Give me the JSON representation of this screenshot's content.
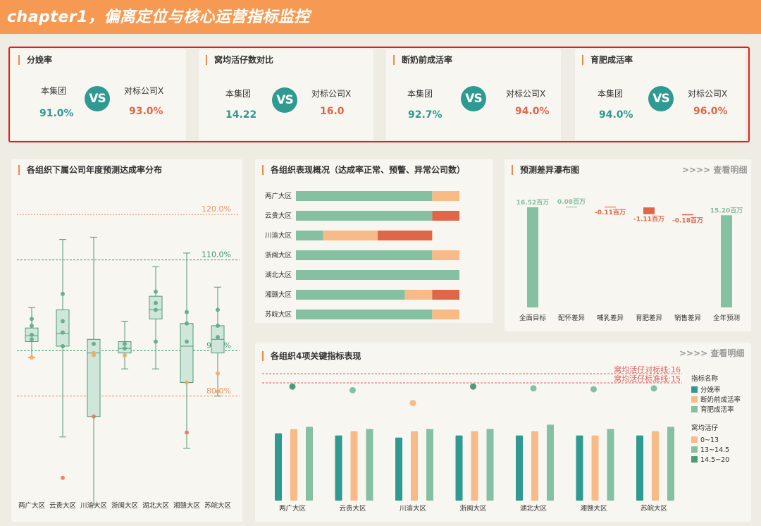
{
  "header": {
    "title": "chapter1，偏离定位与核心运营指标监控"
  },
  "kpis": [
    {
      "title": "分娩率",
      "left_label": "本集团",
      "left_value": "91.0%",
      "vs": "VS",
      "right_label": "对标公司X",
      "right_value": "93.0%"
    },
    {
      "title": "窝均活仔数对比",
      "left_label": "本集团",
      "left_value": "14.22",
      "vs": "VS",
      "right_label": "对标公司X",
      "right_value": "16.0"
    },
    {
      "title": "断奶前成活率",
      "left_label": "本集团",
      "left_value": "92.7%",
      "vs": "VS",
      "right_label": "对标公司X",
      "right_value": "94.0%"
    },
    {
      "title": "育肥成活率",
      "left_label": "本集团",
      "left_value": "94.0%",
      "vs": "VS",
      "right_label": "对标公司X",
      "right_value": "96.0%"
    }
  ],
  "colors": {
    "teal": "#2f9a92",
    "green": "#86c0a2",
    "orange": "#f8bb88",
    "red": "#e0664a",
    "accent": "#f69a53"
  },
  "boxplot": {
    "title": "各组织下属公司年度预测达成率分布",
    "ref_lines": [
      {
        "label": "120.0%",
        "value": 120,
        "color": "#e8936d",
        "style": "dotted"
      },
      {
        "label": "110.0%",
        "value": 110,
        "color": "#3a9a6e",
        "style": "dashed"
      },
      {
        "label": "90.0%",
        "value": 90,
        "color": "#3a9a6e",
        "style": "dashed"
      },
      {
        "label": "80.0%",
        "value": 80,
        "color": "#e8936d",
        "style": "dashed"
      }
    ],
    "chart_data": {
      "type": "boxplot",
      "unit": "%",
      "categories": [
        "两广大区",
        "云贵大区",
        "川渝大区",
        "浙闽大区",
        "湖北大区",
        "湘赣大区",
        "苏皖大区"
      ],
      "boxes": [
        {
          "min": 88.5,
          "q1": 92,
          "median": 93.3,
          "q3": 95,
          "max": 99.5
        },
        {
          "min": 71,
          "q1": 91,
          "median": 93.8,
          "q3": 99,
          "max": 114.5
        },
        {
          "min": 56,
          "q1": 75.5,
          "median": 89.5,
          "q3": 92.5,
          "max": 115
        },
        {
          "min": 86,
          "q1": 89.5,
          "median": 90.5,
          "q3": 92,
          "max": 96.5
        },
        {
          "min": 86,
          "q1": 97,
          "median": 99,
          "q3": 102,
          "max": 108.5
        },
        {
          "min": 68.5,
          "q1": 83,
          "median": 91,
          "q3": 96,
          "max": 111.5
        },
        {
          "min": 80,
          "q1": 89.5,
          "median": 92.5,
          "q3": 95.5,
          "max": 104
        }
      ],
      "points": [
        {
          "cat": 0,
          "value": 92.5,
          "type": "normal"
        },
        {
          "cat": 0,
          "value": 93.5,
          "type": "normal"
        },
        {
          "cat": 0,
          "value": 95.5,
          "type": "normal"
        },
        {
          "cat": 0,
          "value": 97,
          "type": "normal"
        },
        {
          "cat": 0,
          "value": 88.5,
          "type": "warn"
        },
        {
          "cat": 1,
          "value": 91,
          "type": "normal"
        },
        {
          "cat": 1,
          "value": 94,
          "type": "normal"
        },
        {
          "cat": 1,
          "value": 96.5,
          "type": "normal"
        },
        {
          "cat": 1,
          "value": 102.5,
          "type": "normal"
        },
        {
          "cat": 1,
          "value": 62,
          "type": "abnormal"
        },
        {
          "cat": 2,
          "value": 91.5,
          "type": "normal"
        },
        {
          "cat": 2,
          "value": 89,
          "type": "warn"
        },
        {
          "cat": 2,
          "value": 89.5,
          "type": "warn"
        },
        {
          "cat": 2,
          "value": 75.5,
          "type": "abnormal"
        },
        {
          "cat": 3,
          "value": 90.5,
          "type": "normal"
        },
        {
          "cat": 3,
          "value": 91.5,
          "type": "normal"
        },
        {
          "cat": 3,
          "value": 89,
          "type": "warn"
        },
        {
          "cat": 4,
          "value": 92,
          "type": "normal"
        },
        {
          "cat": 4,
          "value": 99,
          "type": "normal"
        },
        {
          "cat": 4,
          "value": 100.5,
          "type": "normal"
        },
        {
          "cat": 4,
          "value": 103,
          "type": "normal"
        },
        {
          "cat": 5,
          "value": 92,
          "type": "normal"
        },
        {
          "cat": 5,
          "value": 96,
          "type": "normal"
        },
        {
          "cat": 5,
          "value": 98.5,
          "type": "normal"
        },
        {
          "cat": 5,
          "value": 83,
          "type": "warn"
        },
        {
          "cat": 5,
          "value": 72,
          "type": "abnormal"
        },
        {
          "cat": 6,
          "value": 93,
          "type": "normal"
        },
        {
          "cat": 6,
          "value": 95.5,
          "type": "normal"
        },
        {
          "cat": 6,
          "value": 99,
          "type": "normal"
        },
        {
          "cat": 6,
          "value": 85,
          "type": "warn"
        },
        {
          "cat": 6,
          "value": 81,
          "type": "warn"
        }
      ]
    }
  },
  "status_bars": {
    "title": "各组织表现概况（达成率正常、预警、异常公司数）",
    "chart_data": {
      "type": "stacked-bar",
      "categories": [
        "两广大区",
        "云贵大区",
        "川渝大区",
        "浙闽大区",
        "湖北大区",
        "湘赣大区",
        "苏皖大区"
      ],
      "series": [
        {
          "name": "正常",
          "color": "#86c0a2",
          "values": [
            5,
            5,
            1,
            5,
            6,
            4,
            5
          ]
        },
        {
          "name": "预警",
          "color": "#f8bb88",
          "values": [
            1,
            0,
            2,
            1,
            0,
            1,
            1
          ]
        },
        {
          "name": "异常",
          "color": "#e0664a",
          "values": [
            0,
            1,
            2,
            0,
            0,
            1,
            0
          ]
        }
      ],
      "xmax": 6
    }
  },
  "waterfall": {
    "title": "预测差异瀑布图",
    "link": ">>>> 查看明细",
    "chart_data": {
      "type": "waterfall",
      "unit": "百万",
      "categories": [
        "全面目标",
        "配怀差异",
        "哺乳差异",
        "育肥差异",
        "销售差异",
        "全年预测"
      ],
      "values": [
        16.52,
        0.08,
        -0.11,
        -1.11,
        -0.18,
        15.2
      ],
      "labels": [
        "16.52百万",
        "0.08百万",
        "-0.11百万",
        "-1.11百万",
        "-0.18百万",
        "15.20百万"
      ],
      "kinds": [
        "total",
        "delta",
        "delta",
        "delta",
        "delta",
        "total"
      ]
    }
  },
  "grouped": {
    "title": "各组织4项关键指标表现",
    "link": ">>>> 查看明细",
    "ref_lines": [
      {
        "label": "窝均活仔对标线:16",
        "value": 16
      },
      {
        "label": "窝均活仔标准线:15",
        "value": 15
      }
    ],
    "legend1_title": "指标名称",
    "legend1": [
      {
        "name": "分娩率",
        "color": "#2f9a92"
      },
      {
        "name": "断奶前成活率",
        "color": "#f8bb88"
      },
      {
        "name": "育肥成活率",
        "color": "#86c0a2"
      }
    ],
    "legend2_title": "窝均活仔",
    "legend2": [
      {
        "name": "0~13",
        "color": "#f8bb88"
      },
      {
        "name": "13~14.5",
        "color": "#86c0a2"
      },
      {
        "name": "14.5~20",
        "color": "#4f9a76"
      }
    ],
    "chart_data": {
      "type": "bar",
      "categories": [
        "两广大区",
        "云贵大区",
        "川渝大区",
        "浙闽大区",
        "湖北大区",
        "湘赣大区",
        "苏皖大区"
      ],
      "series": [
        {
          "name": "分娩率",
          "values": [
            91,
            90,
            89,
            90,
            90,
            90,
            90
          ]
        },
        {
          "name": "断奶前成活率",
          "values": [
            93,
            92,
            92,
            92,
            92,
            90,
            92
          ]
        },
        {
          "name": "育肥成活率",
          "values": [
            94,
            93,
            93,
            93,
            95,
            93,
            94
          ]
        }
      ],
      "litter": [
        14.6,
        14.2,
        12.8,
        14.6,
        14.4,
        14.3,
        14.4
      ]
    }
  }
}
